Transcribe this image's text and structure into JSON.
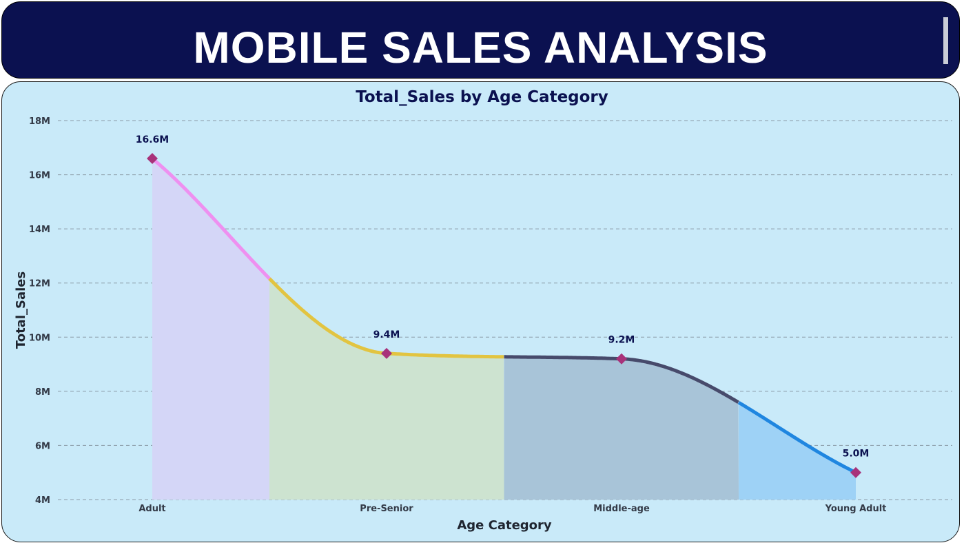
{
  "header": {
    "title": "MOBILE SALES ANALYSIS"
  },
  "colors": {
    "header_bg": "#0b1150",
    "panel_bg": "#c9eaf9",
    "marker": "#a8327a",
    "segment_lines": [
      "#ee90f0",
      "#e2c441",
      "#474a6b",
      "#1f86e0"
    ],
    "segment_fills": [
      "#d4d6f7",
      "#cde3d0",
      "#a8c4d8",
      "#9ed2f6"
    ]
  },
  "chart_data": {
    "type": "area",
    "title": "Total_Sales by Age Category",
    "xlabel": "Age Category",
    "ylabel": "Total_Sales",
    "categories": [
      "Adult",
      "Pre-Senior",
      "Middle-age",
      "Young Adult"
    ],
    "series": [
      {
        "values": [
          16600000,
          9400000,
          9200000,
          5000000
        ],
        "labels": [
          "16.6M",
          "9.4M",
          "9.2M",
          "5.0M"
        ]
      }
    ],
    "ylim": [
      4000000,
      18000000
    ],
    "y_ticks": [
      4000000,
      6000000,
      8000000,
      10000000,
      12000000,
      14000000,
      16000000,
      18000000
    ],
    "y_tick_labels": [
      "4M",
      "6M",
      "8M",
      "10M",
      "12M",
      "14M",
      "16M",
      "18M"
    ],
    "grid": true,
    "legend": "none"
  }
}
